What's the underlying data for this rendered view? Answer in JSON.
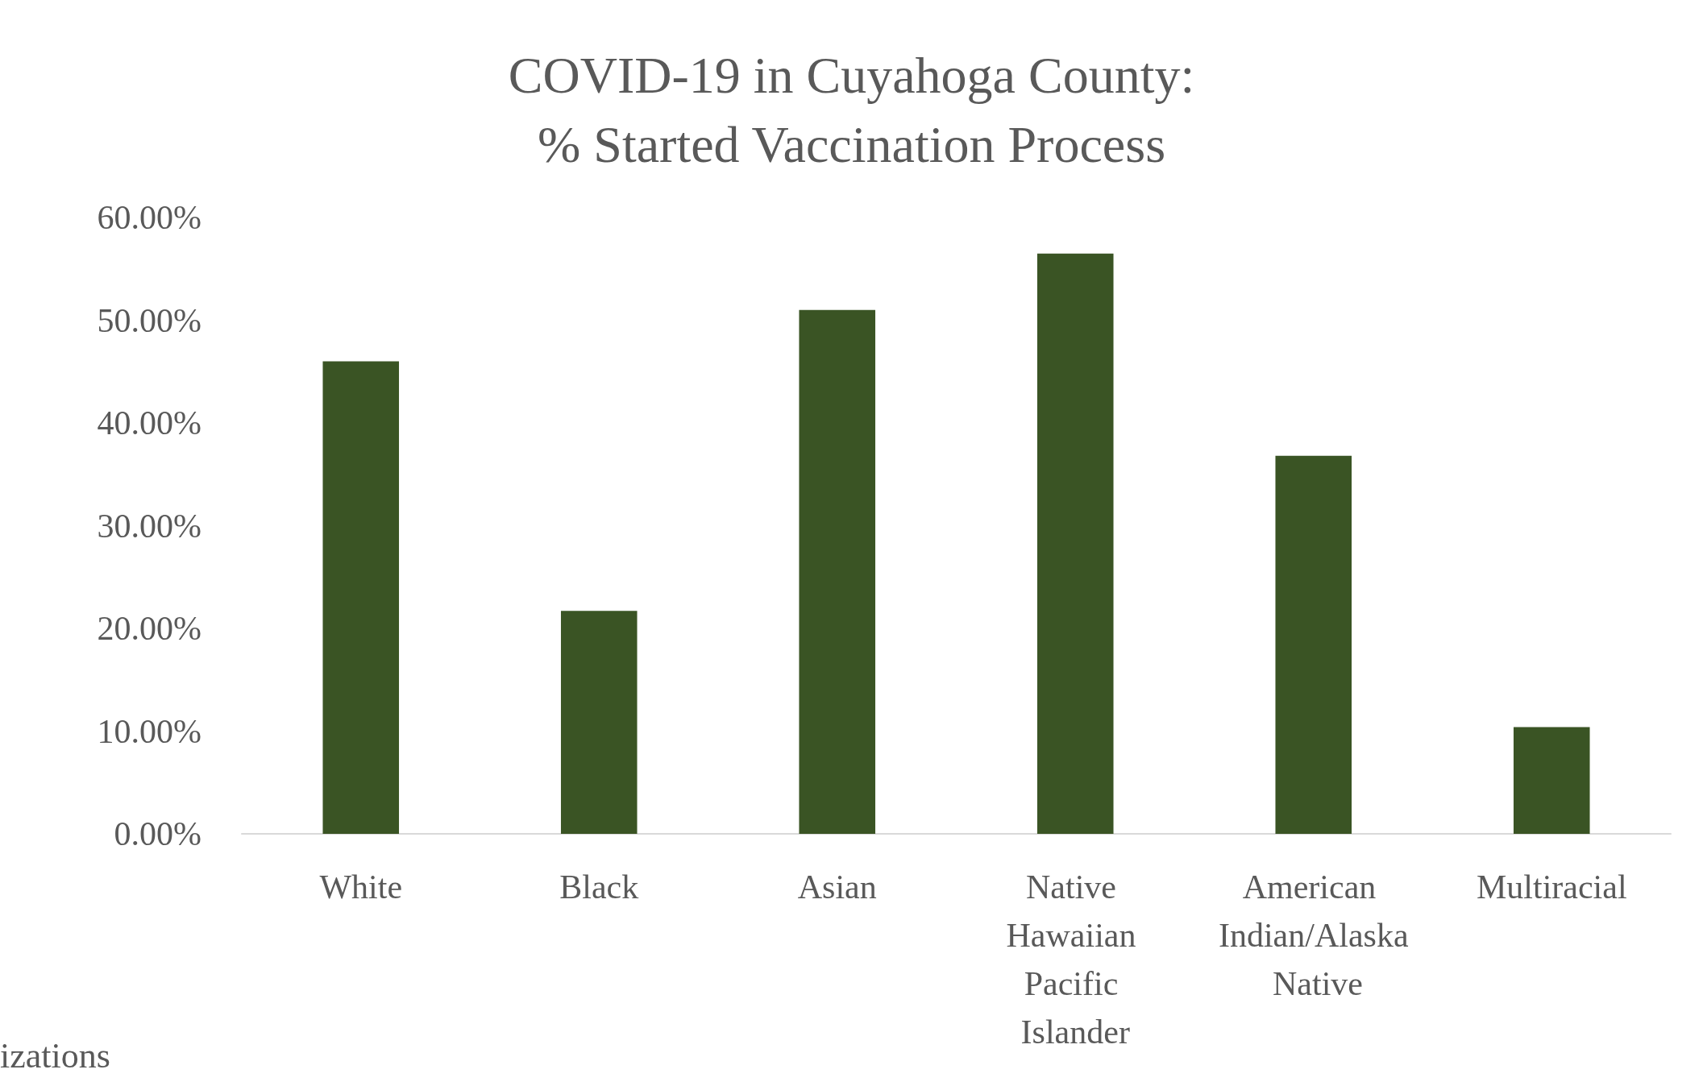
{
  "chart_data": {
    "type": "bar",
    "title": "COVID-19 in Cuyahoga County:\n% Started Vaccination Process",
    "categories": [
      "White",
      "Black",
      "Asian",
      "Native Hawaiian Pacific Islander",
      "American Indian/Alaska Native",
      "Multiracial"
    ],
    "values": [
      46.0,
      21.7,
      51.0,
      56.5,
      36.8,
      10.4
    ],
    "color": "#3a5424",
    "ylim": [
      0,
      60
    ],
    "yticks": [
      {
        "value": 0,
        "label": "0.00%"
      },
      {
        "value": 10,
        "label": "10.00%"
      },
      {
        "value": 20,
        "label": "20.00%"
      },
      {
        "value": 30,
        "label": "30.00%"
      },
      {
        "value": 40,
        "label": "40.00%"
      },
      {
        "value": 50,
        "label": "50.00%"
      },
      {
        "value": 60,
        "label": "60.00%"
      }
    ],
    "annotations": [
      "izations"
    ]
  }
}
